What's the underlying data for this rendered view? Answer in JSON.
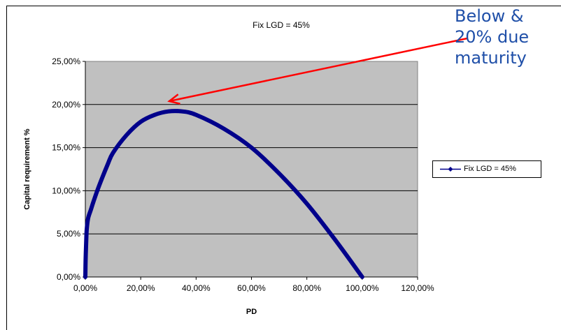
{
  "chart_data": {
    "type": "line",
    "title": "Fix LGD = 45%",
    "xlabel": "PD",
    "ylabel": "Capital requirement %",
    "xlim": [
      0,
      1.2
    ],
    "ylim": [
      0,
      0.25
    ],
    "x_ticks": [
      "0,00%",
      "20,00%",
      "40,00%",
      "60,00%",
      "80,00%",
      "100,00%",
      "120,00%"
    ],
    "y_ticks": [
      "0,00%",
      "5,00%",
      "10,00%",
      "15,00%",
      "20,00%",
      "25,00%"
    ],
    "grid": true,
    "legend_position": "right",
    "plot_background": "#c0c0c0",
    "series": [
      {
        "name": "Fix LGD = 45%",
        "color": "#00008b",
        "x": [
          0.0,
          0.001,
          0.003,
          0.005,
          0.01,
          0.02,
          0.03,
          0.05,
          0.08,
          0.1,
          0.15,
          0.2,
          0.25,
          0.3,
          0.35,
          0.4,
          0.5,
          0.6,
          0.7,
          0.8,
          0.9,
          1.0
        ],
        "y": [
          0.0,
          0.02,
          0.04,
          0.055,
          0.068,
          0.078,
          0.088,
          0.106,
          0.13,
          0.144,
          0.165,
          0.18,
          0.188,
          0.192,
          0.192,
          0.188,
          0.172,
          0.15,
          0.12,
          0.085,
          0.044,
          0.0
        ]
      }
    ],
    "annotation": {
      "lines": [
        "Below & ",
        "20% due",
        "maturity"
      ],
      "color": "#1f4fa8",
      "arrow_color": "#ff0000"
    }
  }
}
